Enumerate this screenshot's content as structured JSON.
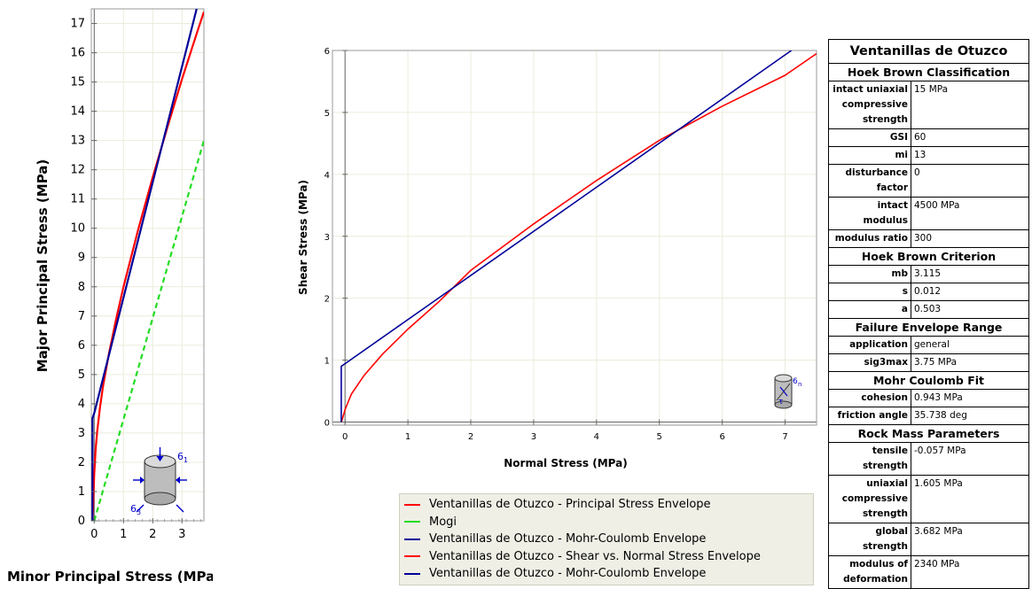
{
  "chart_data": [
    {
      "type": "line",
      "xlabel": "Minor Principal Stress (MPa)",
      "ylabel": "Major Principal Stress (MPa)",
      "xlim": [
        -0.1,
        3.75
      ],
      "ylim": [
        0,
        17.5
      ],
      "x_ticks": [
        0,
        1,
        2,
        3
      ],
      "y_ticks": [
        0,
        1,
        2,
        3,
        4,
        5,
        6,
        7,
        8,
        9,
        10,
        11,
        12,
        13,
        14,
        15,
        16,
        17
      ],
      "grid": true,
      "series": [
        {
          "name": "Ventanillas de Otuzco - Principal Stress Envelope",
          "color": "#ff0000",
          "style": "solid",
          "x": [
            -0.057,
            0.0,
            0.05,
            0.1,
            0.2,
            0.3,
            0.5,
            0.75,
            1.0,
            1.5,
            2.0,
            2.5,
            3.0,
            3.5,
            3.75
          ],
          "y": [
            0.0,
            1.6,
            2.45,
            3.05,
            3.9,
            4.6,
            5.7,
            6.9,
            8.0,
            9.95,
            11.75,
            13.45,
            15.1,
            16.65,
            17.4
          ]
        },
        {
          "name": "Mogi",
          "color": "#22dd22",
          "style": "dashed",
          "x": [
            0,
            3.75
          ],
          "y": [
            0,
            13.0
          ]
        },
        {
          "name": "Ventanillas de Otuzco - Mohr-Coulomb Envelope",
          "color": "#000099",
          "style": "solid",
          "x": [
            -0.06,
            -0.06,
            0,
            3.5
          ],
          "y": [
            0,
            3.5,
            3.682,
            17.5
          ]
        }
      ]
    },
    {
      "type": "line",
      "xlabel": "Normal Stress (MPa)",
      "ylabel": "Shear Stress (MPa)",
      "xlim": [
        -0.2,
        7.5
      ],
      "ylim": [
        -0.05,
        6.0
      ],
      "x_ticks": [
        0,
        1,
        2,
        3,
        4,
        5,
        6,
        7
      ],
      "y_ticks": [
        0,
        1,
        2,
        3,
        4,
        5,
        6
      ],
      "grid": true,
      "series": [
        {
          "name": "Ventanillas de Otuzco - Shear vs. Normal Stress Envelope",
          "color": "#ff0000",
          "style": "solid",
          "x": [
            -0.057,
            0.0,
            0.1,
            0.3,
            0.6,
            1.0,
            1.5,
            2.0,
            3.0,
            4.0,
            5.0,
            6.0,
            7.0,
            7.5
          ],
          "y": [
            0.0,
            0.2,
            0.45,
            0.75,
            1.1,
            1.5,
            1.95,
            2.45,
            3.2,
            3.9,
            4.55,
            5.1,
            5.6,
            5.95
          ]
        },
        {
          "name": "Ventanillas de Otuzco - Mohr-Coulomb Envelope",
          "color": "#000099",
          "style": "solid",
          "x": [
            -0.06,
            -0.06,
            0.0,
            7.1
          ],
          "y": [
            0.0,
            0.9,
            0.943,
            6.0
          ]
        }
      ]
    }
  ],
  "legend": [
    {
      "label": "Ventanillas de Otuzco - Principal Stress Envelope",
      "color": "#ff0000"
    },
    {
      "label": "Mogi",
      "color": "#22dd22"
    },
    {
      "label": "Ventanillas de Otuzco - Mohr-Coulomb Envelope",
      "color": "#000099"
    },
    {
      "label": "Ventanillas de Otuzco - Shear vs. Normal Stress Envelope",
      "color": "#ff0000"
    },
    {
      "label": "Ventanillas de Otuzco - Mohr-Coulomb Envelope",
      "color": "#000099"
    }
  ],
  "icons": {
    "principal": {
      "s1": "6",
      "s1_sub": "1",
      "s3": "6",
      "s3_sub": "3"
    },
    "shear": {
      "sn": "6",
      "sn_sub": "n",
      "tau": "τ"
    }
  },
  "properties": {
    "title": "Ventanillas de Otuzco",
    "sections": [
      {
        "header": "Hoek Brown Classification",
        "rows": [
          [
            "intact uniaxial compressive strength",
            "15 MPa"
          ],
          [
            "GSI",
            "60"
          ],
          [
            "mi",
            "13"
          ],
          [
            "disturbance factor",
            "0"
          ],
          [
            "intact modulus",
            "4500 MPa"
          ],
          [
            "modulus ratio",
            "300"
          ]
        ]
      },
      {
        "header": "Hoek Brown Criterion",
        "rows": [
          [
            "mb",
            "3.115"
          ],
          [
            "s",
            "0.012"
          ],
          [
            "a",
            "0.503"
          ]
        ]
      },
      {
        "header": "Failure Envelope Range",
        "rows": [
          [
            "application",
            "general"
          ],
          [
            "sig3max",
            "3.75 MPa"
          ]
        ]
      },
      {
        "header": "Mohr Coulomb Fit",
        "rows": [
          [
            "cohesion",
            "0.943 MPa"
          ],
          [
            "friction angle",
            "35.738 deg"
          ]
        ]
      },
      {
        "header": "Rock Mass Parameters",
        "rows": [
          [
            "tensile strength",
            "-0.057 MPa"
          ],
          [
            "uniaxial compressive strength",
            "1.605 MPa"
          ],
          [
            "global strength",
            "3.682 MPa"
          ],
          [
            "modulus of deformation",
            "2340 MPa"
          ]
        ]
      }
    ]
  }
}
